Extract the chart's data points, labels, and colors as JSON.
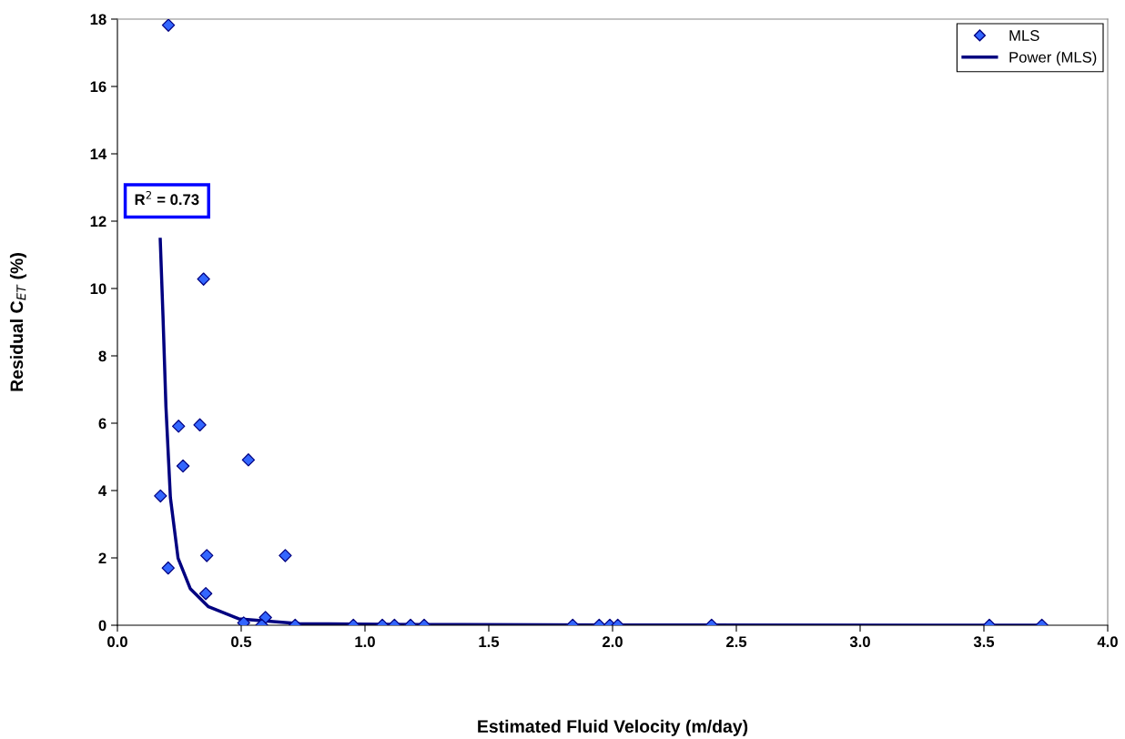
{
  "chart_data": {
    "type": "scatter",
    "xlabel": "Estimated Fluid Velocity (m/day)",
    "ylabel": "Residual C$_{ET}$ (%)",
    "xlim": [
      0,
      4
    ],
    "ylim": [
      0,
      18
    ],
    "xticks": [
      {
        "value": 0,
        "label": "0.0"
      },
      {
        "value": 0.5,
        "label": "0.5"
      },
      {
        "value": 1,
        "label": "1.0"
      },
      {
        "value": 1.5,
        "label": "1.5"
      },
      {
        "value": 2,
        "label": "2.0"
      },
      {
        "value": 2.5,
        "label": "2.5"
      },
      {
        "value": 3,
        "label": "3.0"
      },
      {
        "value": 3.5,
        "label": "3.5"
      },
      {
        "value": 4,
        "label": "4.0"
      }
    ],
    "yticks": [
      0,
      2,
      4,
      6,
      8,
      10,
      12,
      14,
      16,
      18
    ],
    "grid": false,
    "legend": "top right",
    "annotations": [
      "R$^{2}$ = 0.73"
    ],
    "series": [
      {
        "name": "MLS",
        "marker": "diamond",
        "color": "#3366ff",
        "x": [
          0.206,
          0.348,
          0.247,
          0.333,
          0.529,
          0.265,
          0.174,
          0.361,
          0.678,
          0.205,
          0.357,
          0.598,
          0.51,
          0.583,
          0.718,
          0.953,
          1.07,
          1.119,
          1.184,
          1.239,
          1.839,
          1.946,
          1.989,
          2.021,
          2.4,
          3.522,
          3.734
        ],
        "values": [
          17.82,
          10.28,
          5.91,
          5.95,
          4.91,
          4.73,
          3.84,
          2.07,
          2.07,
          1.7,
          0.94,
          0.23,
          0.07,
          0,
          0,
          0,
          0,
          0,
          0,
          0,
          0,
          0,
          0,
          0,
          0,
          0,
          0
        ]
      },
      {
        "name": "Power (MLS)",
        "type": "line",
        "marker": "none",
        "line_style": "solid",
        "color": "#000080",
        "x": [
          0.173,
          0.184,
          0.196,
          0.214,
          0.245,
          0.294,
          0.368,
          0.49,
          0.735,
          1.2,
          2.0,
          3.73
        ],
        "values": [
          11.46,
          9.2,
          6.49,
          3.79,
          1.99,
          1.09,
          0.55,
          0.19,
          0.05,
          0.02,
          0.01,
          0
        ]
      }
    ]
  }
}
